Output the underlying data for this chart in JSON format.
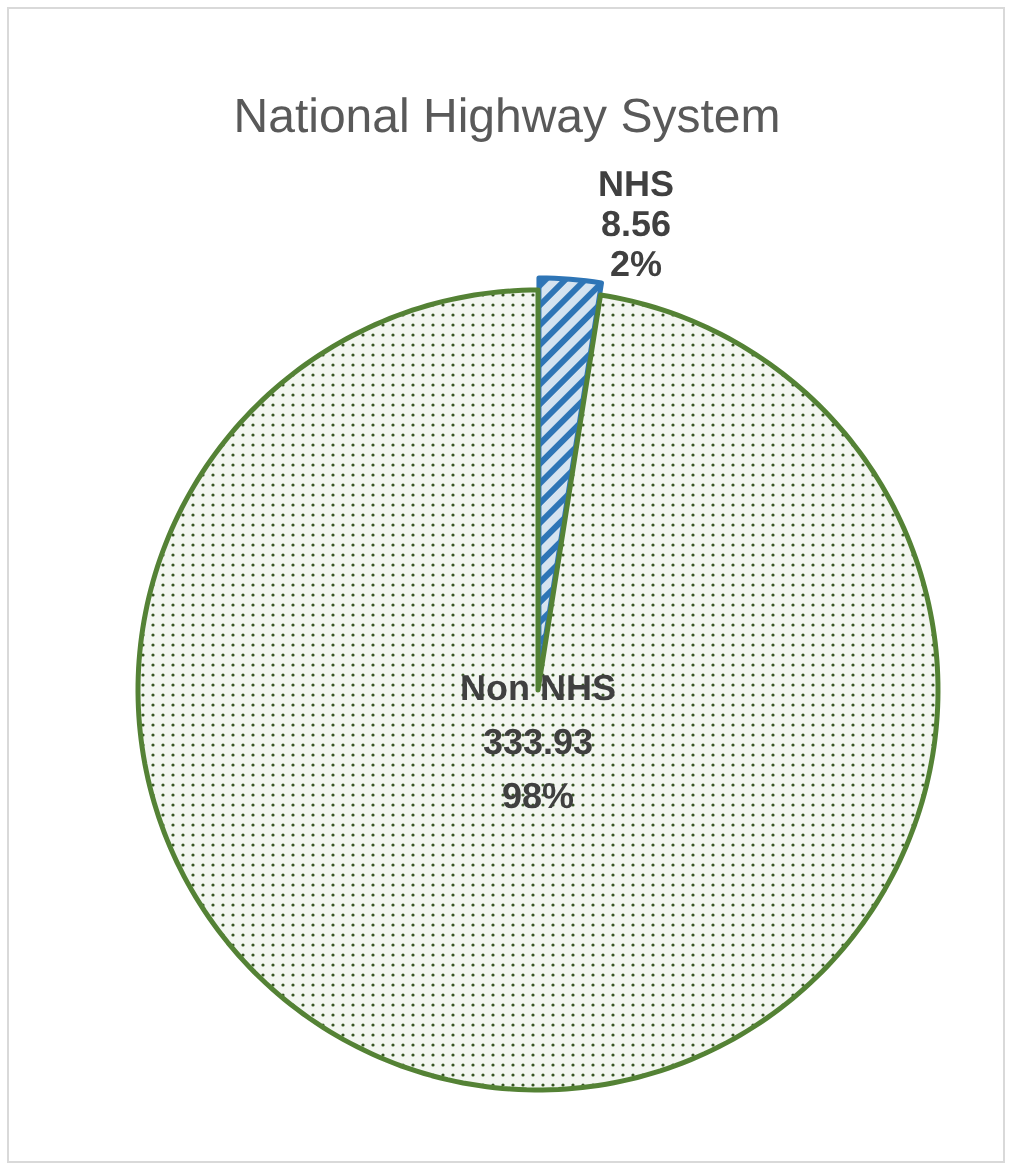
{
  "chart_data": {
    "type": "pie",
    "title": "National Highway System",
    "categories": [
      "NHS",
      "Non NHS"
    ],
    "values": [
      8.56,
      333.93
    ],
    "value_labels": [
      "8.56\n2%",
      "333.93\n98%"
    ],
    "colors": [
      "#2e75b6",
      "#548235"
    ]
  }
}
